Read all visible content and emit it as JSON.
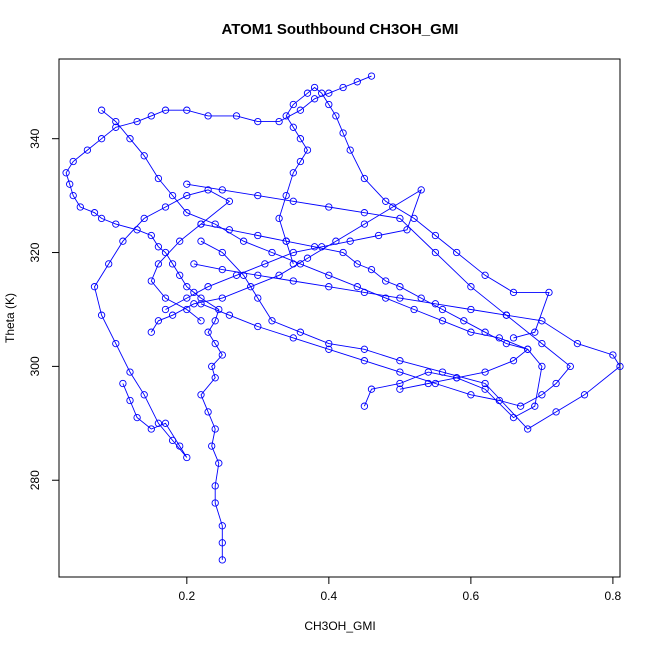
{
  "chart_data": {
    "type": "scatter",
    "title": "ATOM1 Southbound CH3OH_GMI",
    "xlabel": "CH3OH_GMI",
    "ylabel": "Theta (K)",
    "xlim": [
      0.02,
      0.81
    ],
    "ylim": [
      263,
      354
    ],
    "x_ticks": [
      0.2,
      0.4,
      0.6,
      0.8
    ],
    "x_tick_labels": [
      "0.2",
      "0.4",
      "0.6",
      "0.8"
    ],
    "y_ticks": [
      280,
      300,
      320,
      340
    ],
    "y_tick_labels": [
      "280",
      "300",
      "320",
      "340"
    ],
    "grid": false,
    "legend": false,
    "marker": "open-circle",
    "connected": true,
    "color": "#0000ff",
    "series": [
      {
        "x": [
          0.25,
          0.25,
          0.25,
          0.24,
          0.24,
          0.245,
          0.235,
          0.24,
          0.23,
          0.22,
          0.24,
          0.235,
          0.25,
          0.24,
          0.23,
          0.24,
          0.245,
          0.22,
          0.21,
          0.2,
          0.19,
          0.18,
          0.17,
          0.16,
          0.15,
          0.13,
          0.1,
          0.08,
          0.07,
          0.05,
          0.04,
          0.035,
          0.03,
          0.04,
          0.06,
          0.08,
          0.1,
          0.13,
          0.15,
          0.17,
          0.2,
          0.23,
          0.27,
          0.3,
          0.33,
          0.36,
          0.38,
          0.4,
          0.42,
          0.44,
          0.46
        ],
        "y": [
          266,
          269,
          272,
          276,
          279,
          283,
          286,
          289,
          292,
          295,
          298,
          300,
          302,
          304,
          306,
          308,
          310,
          312,
          313,
          314,
          316,
          318,
          320,
          321,
          323,
          324,
          325,
          326,
          327,
          328,
          330,
          332,
          334,
          336,
          338,
          340,
          342,
          343,
          344,
          345,
          345,
          344,
          344,
          343,
          343,
          345,
          347,
          348,
          349,
          350,
          351
        ]
      },
      {
        "x": [
          0.21,
          0.25,
          0.3,
          0.35,
          0.4,
          0.45,
          0.5,
          0.55,
          0.6,
          0.65,
          0.7,
          0.75,
          0.8,
          0.81,
          0.76,
          0.72,
          0.68,
          0.62,
          0.56,
          0.5,
          0.45,
          0.4,
          0.36,
          0.32,
          0.3,
          0.28,
          0.25,
          0.22
        ],
        "y": [
          318,
          317,
          316,
          315,
          314,
          313,
          312,
          311,
          310,
          309,
          308,
          304,
          302,
          300,
          295,
          292,
          289,
          297,
          299,
          301,
          303,
          304,
          306,
          308,
          312,
          316,
          320,
          322
        ]
      },
      {
        "x": [
          0.08,
          0.1,
          0.12,
          0.14,
          0.16,
          0.18,
          0.2,
          0.24,
          0.28,
          0.32,
          0.36,
          0.4,
          0.44,
          0.48,
          0.52,
          0.56,
          0.6,
          0.64,
          0.68,
          0.7,
          0.69,
          0.66,
          0.62,
          0.58,
          0.54,
          0.5,
          0.46,
          0.45
        ],
        "y": [
          345,
          343,
          340,
          337,
          333,
          330,
          327,
          325,
          322,
          320,
          318,
          316,
          314,
          312,
          310,
          308,
          306,
          305,
          303,
          300,
          293,
          291,
          296,
          298,
          299,
          297,
          296,
          293
        ]
      },
      {
        "x": [
          0.35,
          0.34,
          0.33,
          0.34,
          0.35,
          0.36,
          0.37,
          0.36,
          0.35,
          0.34,
          0.35,
          0.37,
          0.38,
          0.39,
          0.4,
          0.41,
          0.42,
          0.43,
          0.45,
          0.48,
          0.52,
          0.55,
          0.58,
          0.62,
          0.66,
          0.71,
          0.69,
          0.66
        ],
        "y": [
          318,
          322,
          326,
          330,
          334,
          336,
          338,
          340,
          342,
          344,
          346,
          348,
          349,
          348,
          346,
          344,
          341,
          338,
          333,
          329,
          326,
          323,
          320,
          316,
          313,
          313,
          306,
          305
        ]
      },
      {
        "x": [
          0.11,
          0.12,
          0.13,
          0.15,
          0.17,
          0.19,
          0.2,
          0.18,
          0.16,
          0.14,
          0.12,
          0.1,
          0.08,
          0.07,
          0.09,
          0.11,
          0.14,
          0.17,
          0.2,
          0.23,
          0.26,
          0.22,
          0.19,
          0.16,
          0.15,
          0.17,
          0.2,
          0.22
        ],
        "y": [
          297,
          294,
          291,
          289,
          290,
          286,
          284,
          287,
          290,
          295,
          299,
          304,
          309,
          314,
          318,
          322,
          326,
          328,
          330,
          331,
          329,
          325,
          322,
          318,
          315,
          312,
          310,
          308
        ]
      },
      {
        "x": [
          0.2,
          0.25,
          0.3,
          0.35,
          0.4,
          0.45,
          0.5,
          0.55,
          0.6,
          0.65,
          0.7,
          0.74,
          0.72,
          0.7,
          0.67,
          0.64,
          0.6,
          0.55,
          0.5,
          0.45,
          0.4,
          0.35,
          0.3,
          0.26,
          0.22
        ],
        "y": [
          332,
          331,
          330,
          329,
          328,
          327,
          326,
          320,
          314,
          309,
          304,
          300,
          297,
          295,
          293,
          294,
          295,
          297,
          299,
          301,
          303,
          305,
          307,
          309,
          311
        ]
      },
      {
        "x": [
          0.22,
          0.26,
          0.3,
          0.34,
          0.38,
          0.42,
          0.44,
          0.46,
          0.48,
          0.5,
          0.53,
          0.56,
          0.59,
          0.62,
          0.65,
          0.68,
          0.66,
          0.62,
          0.58,
          0.54,
          0.5
        ],
        "y": [
          325,
          324,
          323,
          322,
          321,
          320,
          318,
          317,
          315,
          314,
          312,
          310,
          308,
          306,
          304,
          303,
          301,
          299,
          298,
          297,
          296
        ]
      },
      {
        "x": [
          0.17,
          0.2,
          0.23,
          0.27,
          0.31,
          0.35,
          0.39,
          0.43,
          0.47,
          0.51,
          0.53,
          0.49,
          0.45,
          0.41,
          0.37,
          0.33,
          0.29,
          0.25,
          0.21,
          0.18,
          0.16,
          0.15
        ],
        "y": [
          310,
          312,
          314,
          316,
          318,
          320,
          321,
          322,
          323,
          324,
          331,
          328,
          325,
          322,
          319,
          316,
          314,
          312,
          311,
          309,
          308,
          306
        ]
      }
    ]
  }
}
